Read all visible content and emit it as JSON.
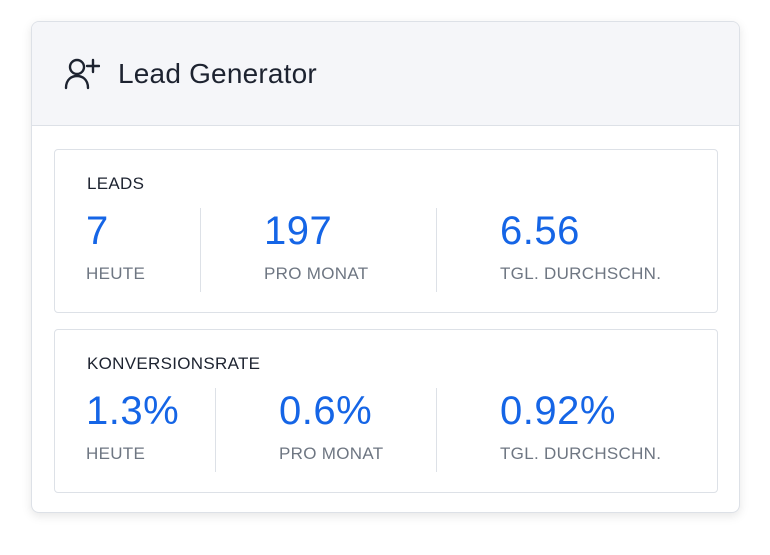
{
  "widget": {
    "title": "Lead Generator",
    "icon": "add-user-icon",
    "accent_color": "#1565e6"
  },
  "leads": {
    "title": "LEADS",
    "stats": [
      {
        "value": "7",
        "label": "HEUTE"
      },
      {
        "value": "197",
        "label": "PRO MONAT"
      },
      {
        "value": "6.56",
        "label": "TGL. DURCHSCHN."
      }
    ]
  },
  "conversion": {
    "title": "KONVERSIONSRATE",
    "stats": [
      {
        "value": "1.3%",
        "label": "HEUTE"
      },
      {
        "value": "0.6%",
        "label": "PRO MONAT"
      },
      {
        "value": "0.92%",
        "label": "TGL. DURCHSCHN."
      }
    ]
  }
}
